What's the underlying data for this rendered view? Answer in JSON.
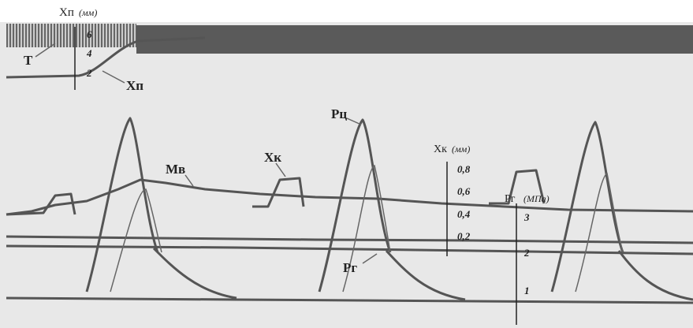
{
  "scales": {
    "xp": {
      "label": "Хп",
      "unit": "(мм)",
      "ticks": [
        "6",
        "4",
        "2"
      ]
    },
    "xk": {
      "label": "Хк",
      "unit": "(мм)",
      "ticks": [
        "0,8",
        "0,6",
        "0,4",
        "0,2"
      ]
    },
    "pg": {
      "label": "Рг",
      "unit": "(МПа)",
      "ticks": [
        "3",
        "2",
        "1"
      ]
    }
  },
  "labels": {
    "t": "Т",
    "xp": "Хп",
    "pc": "Рц",
    "mv": "Мв",
    "xk": "Хк",
    "pg": "Рг"
  }
}
